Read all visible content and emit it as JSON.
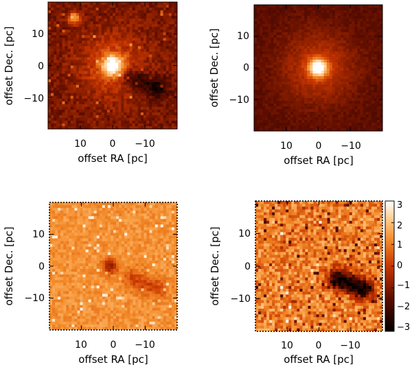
{
  "figure": {
    "panels": [
      {
        "id": "observed",
        "kind": "heatmap",
        "xlabel": "offset RA [pc]",
        "ylabel": "offset Dec. [pc]",
        "x_range": [
          20,
          -20
        ],
        "y_range": [
          -20,
          20
        ],
        "x_ticks": [
          10,
          0,
          -10
        ],
        "y_ticks": [
          10,
          0,
          -10
        ],
        "x_tick_labels": [
          "10",
          "0",
          "−10"
        ],
        "y_tick_labels": [
          "10",
          "0",
          "−10"
        ],
        "colormap": "dark-red-to-white"
      },
      {
        "id": "model",
        "kind": "heatmap",
        "xlabel": "offset RA [pc]",
        "ylabel": "offset Dec. [pc]",
        "x_range": [
          20,
          -20
        ],
        "y_range": [
          -20,
          20
        ],
        "x_ticks": [
          10,
          0,
          -10
        ],
        "y_ticks": [
          10,
          0,
          -10
        ],
        "x_tick_labels": [
          "10",
          "0",
          "−10"
        ],
        "y_tick_labels": [
          "10",
          "0",
          "−10"
        ],
        "colormap": "dark-red-to-white"
      },
      {
        "id": "residual",
        "kind": "heatmap",
        "xlabel": "offset RA [pc]",
        "ylabel": "offset Dec. [pc]",
        "x_range": [
          20,
          -20
        ],
        "y_range": [
          -20,
          20
        ],
        "x_ticks": [
          10,
          0,
          -10
        ],
        "y_ticks": [
          10,
          0,
          -10
        ],
        "x_tick_labels": [
          "10",
          "0",
          "−10"
        ],
        "y_tick_labels": [
          "10",
          "0",
          "−10"
        ],
        "colormap": "dark-red-to-white"
      },
      {
        "id": "significance",
        "kind": "heatmap",
        "xlabel": "offset RA [pc]",
        "ylabel": "offset Dec. [pc]",
        "x_range": [
          20,
          -20
        ],
        "y_range": [
          -20,
          20
        ],
        "x_ticks": [
          10,
          0,
          -10
        ],
        "y_ticks": [
          10,
          0,
          -10
        ],
        "x_tick_labels": [
          "10",
          "0",
          "−10"
        ],
        "y_tick_labels": [
          "10",
          "0",
          "−10"
        ],
        "colormap": "dark-red-to-white",
        "colorbar": {
          "range": [
            -3,
            3
          ],
          "ticks": [
            3,
            2,
            1,
            0,
            -1,
            -2,
            -3
          ],
          "labels": [
            "3",
            "2",
            "1",
            "0",
            "−1",
            "−2",
            "−3"
          ]
        }
      }
    ]
  },
  "chart_data": [
    {
      "type": "heatmap",
      "xlabel": "offset RA [pc]",
      "ylabel": "offset Dec. [pc]",
      "xlim": [
        20,
        -20
      ],
      "ylim": [
        -20,
        20
      ],
      "features": "bright central peak at (0, 0); compact bright source near (12, 15); dark absorption lane around (-6, -4) to (-14, -7)"
    },
    {
      "type": "heatmap",
      "xlabel": "offset RA [pc]",
      "ylabel": "offset Dec. [pc]",
      "xlim": [
        20,
        -20
      ],
      "ylim": [
        -20,
        20
      ],
      "features": "smooth centrally peaked distribution at (0, 0)"
    },
    {
      "type": "heatmap",
      "xlabel": "offset RA [pc]",
      "ylabel": "offset Dec. [pc]",
      "xlim": [
        20,
        -20
      ],
      "ylim": [
        -20,
        20
      ],
      "features": "mostly flat field; dark residual near center and along lane (-6, -4) to (-14, -7); scattered bright speckles"
    },
    {
      "type": "heatmap",
      "xlabel": "offset RA [pc]",
      "ylabel": "offset Dec. [pc]",
      "xlim": [
        20,
        -20
      ],
      "ylim": [
        -20,
        20
      ],
      "colorbar_range": [
        -3,
        3
      ],
      "colorbar_ticks": [
        3,
        2,
        1,
        0,
        -1,
        -2,
        -3
      ],
      "features": "noisy field with deficit (~-3) along lane (-6, -4) to (-14, -7)"
    }
  ]
}
